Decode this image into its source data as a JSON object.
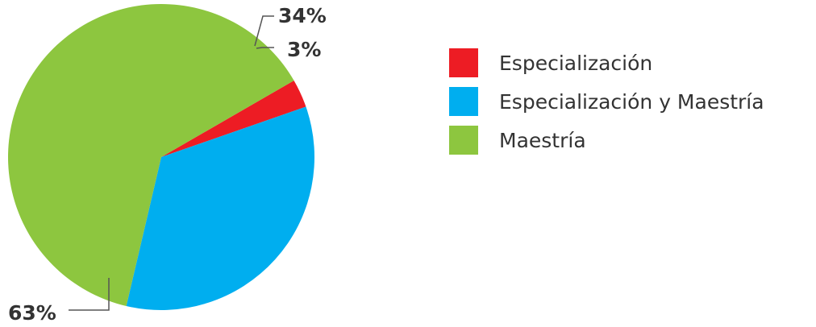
{
  "chart_data": {
    "type": "pie",
    "title": "",
    "slices": [
      {
        "name": "Especialización",
        "value": 3,
        "label": "3%",
        "color": "#ed1c24"
      },
      {
        "name": "Especialización y Maestría",
        "value": 34,
        "label": "34%",
        "color": "#00aeef"
      },
      {
        "name": "Maestría",
        "value": 63,
        "label": "63%",
        "color": "#8dc63f"
      }
    ],
    "legend": {
      "placement": "right",
      "entries": [
        "Especialización",
        "Especialización y Maestría",
        "Maestría"
      ]
    }
  }
}
